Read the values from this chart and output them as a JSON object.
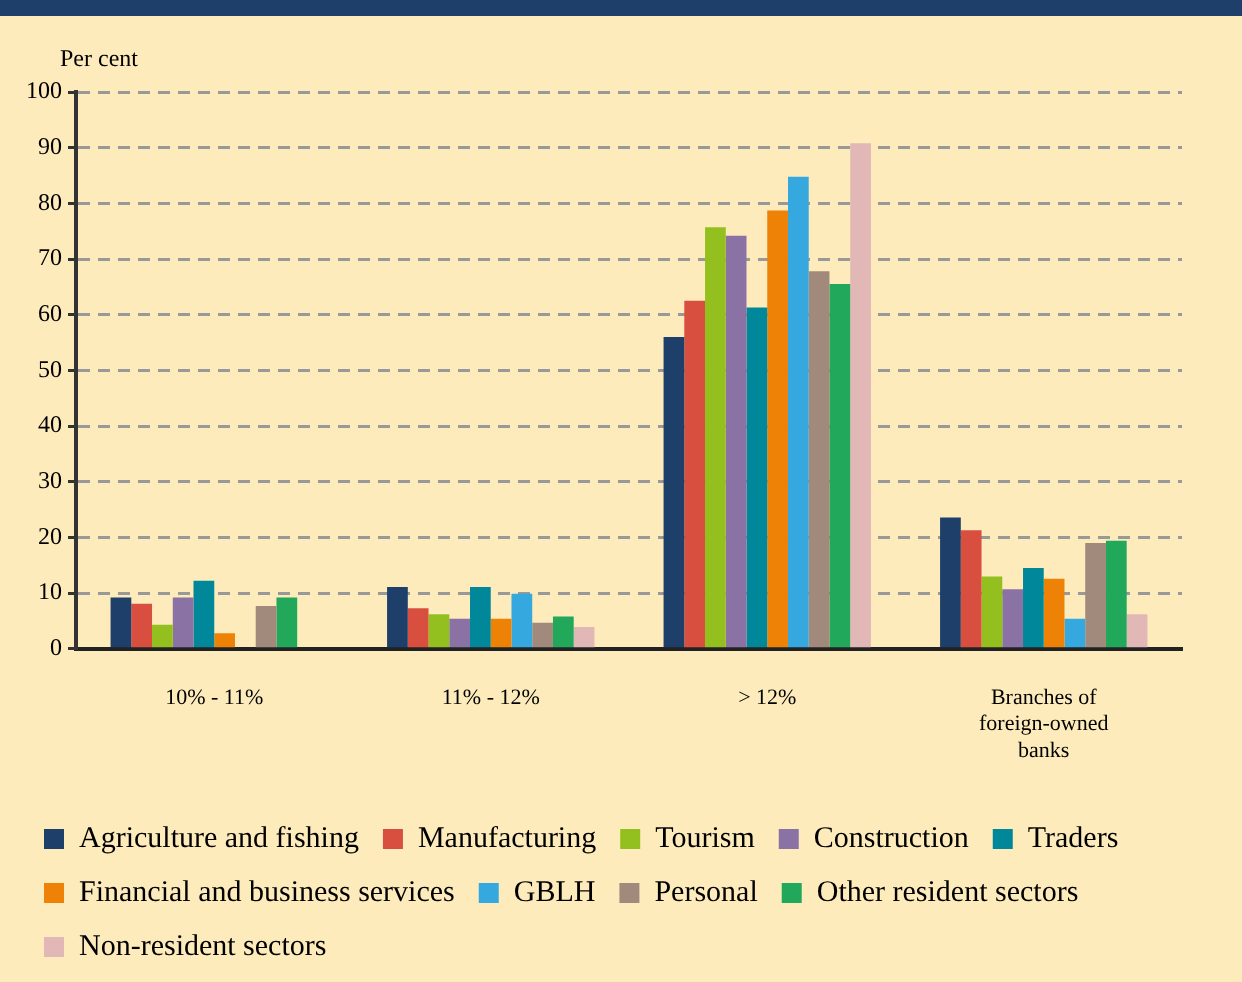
{
  "chart_data": {
    "type": "bar",
    "ylabel": "Per cent",
    "categories": [
      "10% - 11%",
      "11% - 12%",
      "> 12%",
      "Branches of foreign-owned banks"
    ],
    "series": [
      {
        "name": "Agriculture and fishing",
        "color": "#1f3f6b",
        "values": [
          9.2,
          11.1,
          56.0,
          23.6
        ]
      },
      {
        "name": "Manufacturing",
        "color": "#d94f3f",
        "values": [
          8.1,
          7.3,
          62.5,
          21.3
        ]
      },
      {
        "name": "Tourism",
        "color": "#93c01f",
        "values": [
          4.3,
          6.2,
          75.7,
          13.0
        ]
      },
      {
        "name": "Construction",
        "color": "#8a72a4",
        "values": [
          9.2,
          5.4,
          74.2,
          10.7
        ]
      },
      {
        "name": "Traders",
        "color": "#00889a",
        "values": [
          12.2,
          11.1,
          61.3,
          14.5
        ]
      },
      {
        "name": "Financial and business services",
        "color": "#ee8207",
        "values": [
          2.8,
          5.4,
          78.7,
          12.6
        ]
      },
      {
        "name": "GBLH",
        "color": "#35a8e0",
        "values": [
          null,
          9.9,
          84.8,
          5.4
        ]
      },
      {
        "name": "Personal",
        "color": "#a18a7b",
        "values": [
          7.7,
          4.7,
          67.8,
          19.0
        ]
      },
      {
        "name": "Other resident sectors",
        "color": "#22a85a",
        "values": [
          9.2,
          5.8,
          65.5,
          19.4
        ]
      },
      {
        "name": "Non-resident sectors",
        "color": "#e2b8b6",
        "values": [
          null,
          3.9,
          90.8,
          6.2
        ]
      }
    ],
    "ylim": [
      0,
      100
    ],
    "yticks": [
      0,
      10,
      20,
      30,
      40,
      50,
      60,
      70,
      80,
      90,
      100
    ],
    "grid": "y",
    "legend": "bottom"
  }
}
